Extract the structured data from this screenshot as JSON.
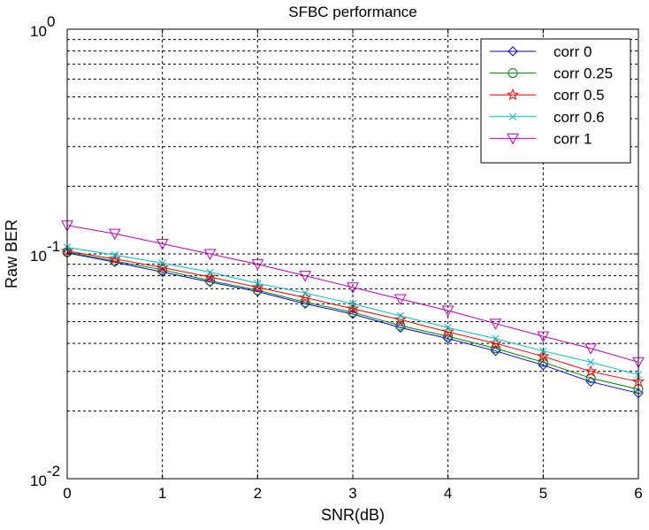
{
  "chart_data": {
    "type": "line",
    "title": "SFBC performance",
    "xlabel": "SNR(dB)",
    "ylabel": "Raw BER",
    "xlim": [
      0,
      6
    ],
    "ylim": [
      0.01,
      1
    ],
    "yscale": "log",
    "grid": true,
    "legend_position": "top-right",
    "x_ticks": [
      {
        "value": 0,
        "label": "0"
      },
      {
        "value": 1,
        "label": "1"
      },
      {
        "value": 2,
        "label": "2"
      },
      {
        "value": 3,
        "label": "3"
      },
      {
        "value": 4,
        "label": "4"
      },
      {
        "value": 5,
        "label": "5"
      },
      {
        "value": 6,
        "label": "6"
      }
    ],
    "y_ticks": [
      {
        "value": 0.01,
        "base": "10",
        "exponent": "-2"
      },
      {
        "value": 0.1,
        "base": "10",
        "exponent": "-1"
      },
      {
        "value": 1,
        "base": "10",
        "exponent": "0"
      }
    ],
    "x": [
      0,
      0.5,
      1,
      1.5,
      2,
      2.5,
      3,
      3.5,
      4,
      4.5,
      5,
      5.5,
      6
    ],
    "series": [
      {
        "name": "corr 0",
        "color": "#0000ff",
        "marker": "diamond",
        "values": [
          0.101,
          0.092,
          0.083,
          0.075,
          0.068,
          0.06,
          0.054,
          0.047,
          0.042,
          0.037,
          0.032,
          0.027,
          0.024
        ]
      },
      {
        "name": "corr 0.25",
        "color": "#008000",
        "marker": "circle",
        "values": [
          0.102,
          0.093,
          0.085,
          0.076,
          0.069,
          0.061,
          0.055,
          0.048,
          0.043,
          0.038,
          0.033,
          0.028,
          0.025
        ]
      },
      {
        "name": "corr 0.5",
        "color": "#ff0000",
        "marker": "star",
        "values": [
          0.103,
          0.095,
          0.087,
          0.079,
          0.071,
          0.064,
          0.057,
          0.051,
          0.045,
          0.04,
          0.035,
          0.03,
          0.027
        ]
      },
      {
        "name": "corr 0.6",
        "color": "#00bfbf",
        "marker": "x",
        "values": [
          0.107,
          0.099,
          0.091,
          0.083,
          0.074,
          0.067,
          0.06,
          0.053,
          0.047,
          0.042,
          0.037,
          0.033,
          0.029
        ]
      },
      {
        "name": "corr 1",
        "color": "#bf00bf",
        "marker": "triangle-down",
        "values": [
          0.134,
          0.123,
          0.111,
          0.1,
          0.09,
          0.08,
          0.071,
          0.063,
          0.056,
          0.049,
          0.043,
          0.038,
          0.033
        ]
      }
    ]
  }
}
